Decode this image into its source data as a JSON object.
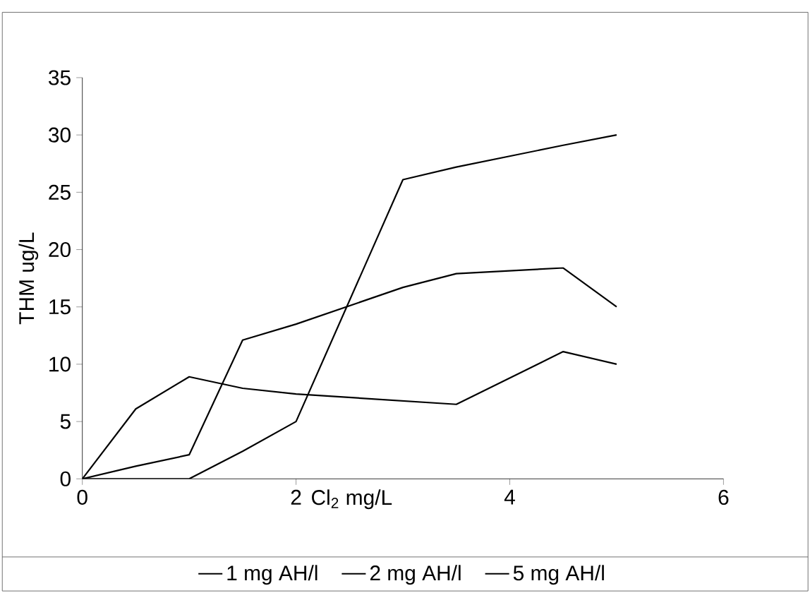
{
  "chart_data": {
    "type": "line",
    "xlabel": "Cl$_{2}$ mg/L",
    "ylabel": "THM ug/L",
    "xlim": [
      0,
      6
    ],
    "ylim": [
      0,
      35
    ],
    "xticks": [
      0,
      2,
      4,
      6
    ],
    "yticks": [
      0,
      5,
      10,
      15,
      20,
      25,
      30,
      35
    ],
    "grid": false,
    "legend": "bottom",
    "marker": "none",
    "line_style": "solid",
    "series": [
      {
        "name": "1 mg AH/l",
        "color": "#000000",
        "x": [
          0,
          0.5,
          1,
          1.5,
          2,
          3.5,
          4.5,
          5
        ],
        "values": [
          0,
          6.1,
          8.9,
          7.9,
          7.4,
          6.5,
          11.1,
          10
        ]
      },
      {
        "name": "2 mg AH/l",
        "color": "#000000",
        "x": [
          0,
          0.5,
          1,
          1.5,
          2,
          3,
          3.5,
          4.5,
          5
        ],
        "values": [
          0,
          1.1,
          2.1,
          12.1,
          13.5,
          16.7,
          17.9,
          18.4,
          15
        ]
      },
      {
        "name": "5 mg AH/l",
        "color": "#000000",
        "x": [
          0,
          1,
          1.5,
          2,
          3,
          3.5,
          4.5,
          5
        ],
        "values": [
          0,
          0,
          2.4,
          5,
          26.1,
          27.2,
          29.1,
          30
        ]
      }
    ]
  }
}
